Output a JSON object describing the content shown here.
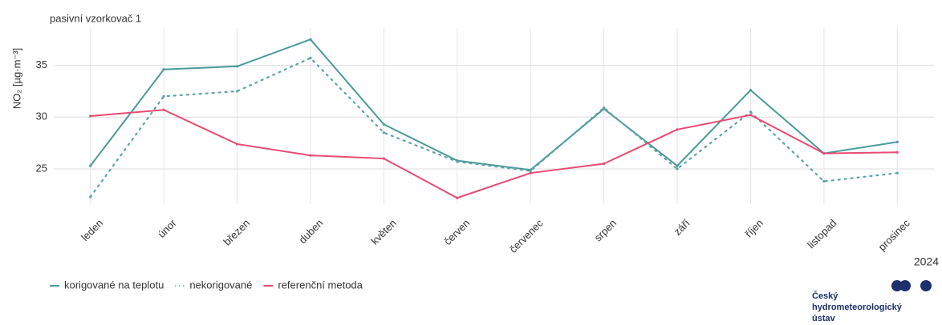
{
  "chart_data": {
    "type": "line",
    "title": "pasivní vzorkovač 1",
    "y_label": "NO₂ [µg·m⁻³]",
    "categories": [
      "leden",
      "únor",
      "březen",
      "duben",
      "květen",
      "červen",
      "červenec",
      "srpen",
      "září",
      "říjen",
      "listopad",
      "prosinec"
    ],
    "series": [
      {
        "name": "korigované na teplotu",
        "color": "#4a9a9c",
        "style": "solid",
        "values": [
          25.3,
          34.6,
          34.9,
          37.5,
          29.3,
          25.8,
          24.9,
          30.8,
          25.3,
          32.6,
          26.5,
          27.6
        ]
      },
      {
        "name": "nekorigované",
        "color": "#5ca3a5",
        "style": "dotted",
        "values": [
          22.3,
          32.0,
          32.5,
          35.7,
          28.5,
          25.7,
          24.8,
          30.9,
          25.0,
          30.5,
          23.8,
          24.6
        ]
      },
      {
        "name": "referenční metoda",
        "color": "#e84a72",
        "style": "solid",
        "values": [
          30.1,
          30.7,
          27.4,
          26.3,
          26.0,
          22.2,
          24.6,
          25.5,
          28.8,
          30.2,
          26.5,
          26.6
        ]
      }
    ],
    "ylim": [
      21.6,
      38.6
    ],
    "yticks": [
      25,
      30,
      35
    ],
    "grid": true,
    "legend": "bottom-left",
    "year": "2024",
    "logo": [
      "Český",
      "hydrometeorologický",
      "ústav"
    ]
  }
}
